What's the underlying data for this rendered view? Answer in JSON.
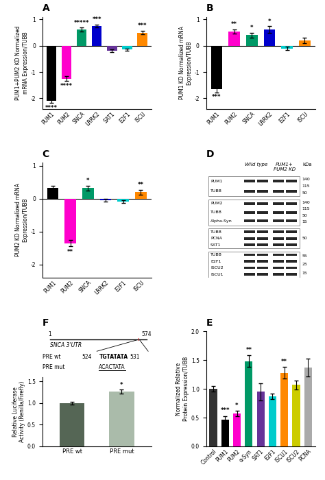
{
  "chart_data": [
    {
      "type": "bar",
      "title": "A",
      "ylabel": "PUM1+PUM2 KD Normalized\nmRNA Expression/TUBB",
      "categories": [
        "PUM1",
        "PUM2",
        "SNCA",
        "LRRK2",
        "SAT1",
        "E2F1",
        "ISCU"
      ],
      "values": [
        -2.1,
        -1.25,
        0.62,
        0.75,
        -0.2,
        -0.15,
        0.5
      ],
      "errors": [
        0.08,
        0.1,
        0.07,
        0.06,
        0.05,
        0.05,
        0.07
      ],
      "colors": [
        "#000000",
        "#ff00cc",
        "#009966",
        "#0000cc",
        "#663399",
        "#00cccc",
        "#ff8800"
      ],
      "annotations": [
        "****",
        "****",
        "*****",
        "***",
        null,
        null,
        "***"
      ],
      "ylim": [
        -2.4,
        1.1
      ],
      "yticks": [
        -2,
        -1,
        0,
        1
      ]
    },
    {
      "type": "bar",
      "title": "B",
      "ylabel": "PUM1 KD Normalized mRNA\nExpression/TUBB",
      "categories": [
        "PUM1",
        "PUM2",
        "SNCA",
        "LRRK2",
        "E2F1",
        "ISCU"
      ],
      "values": [
        -1.65,
        0.55,
        0.4,
        0.62,
        -0.1,
        0.2
      ],
      "errors": [
        0.12,
        0.08,
        0.1,
        0.12,
        0.06,
        0.1
      ],
      "colors": [
        "#000000",
        "#ff00cc",
        "#009966",
        "#0000cc",
        "#00cccc",
        "#ff8800"
      ],
      "annotations": [
        "***",
        "**",
        "*",
        "*",
        null,
        null
      ],
      "ylim": [
        -2.4,
        1.1
      ],
      "yticks": [
        -2,
        -1,
        0,
        1
      ]
    },
    {
      "type": "bar",
      "title": "C",
      "ylabel": "PUM2 KD Normalized mRNA\nExpression/TUBB",
      "categories": [
        "PUM1",
        "PUM2",
        "SNCA",
        "LRRK2",
        "E2F1",
        "ISCU"
      ],
      "values": [
        0.32,
        -1.35,
        0.32,
        -0.05,
        -0.08,
        0.2
      ],
      "errors": [
        0.07,
        0.1,
        0.07,
        0.04,
        0.04,
        0.07
      ],
      "colors": [
        "#000000",
        "#ff00cc",
        "#009966",
        "#0000cc",
        "#00cccc",
        "#ff8800"
      ],
      "annotations": [
        null,
        "**",
        "*",
        null,
        null,
        "**"
      ],
      "ylim": [
        -2.4,
        1.1
      ],
      "yticks": [
        -2,
        -1,
        0,
        1
      ]
    },
    {
      "type": "blot",
      "title": "D",
      "annotations": [
        "Wild type",
        "PUM1+\nPUM2 KD",
        "kDa"
      ],
      "groups": [
        {
          "labels": [
            "PUM1",
            "TUBB"
          ],
          "markers": [
            140,
            115,
            50
          ]
        },
        {
          "labels": [
            "PUM2",
            "TUBB",
            "Alpha-Syn"
          ],
          "markers": [
            140,
            115,
            50,
            15
          ]
        },
        {
          "labels": [
            "TUBB",
            "PCNA",
            "SAT1"
          ],
          "markers": [
            50
          ]
        },
        {
          "labels": [
            "TUBB",
            "E2F1",
            "ISCU2",
            "ISCU1"
          ],
          "markers": [
            55,
            25,
            15
          ]
        }
      ]
    },
    {
      "type": "bar",
      "title": "E",
      "ylabel": "Normalized Relative\nProtein Expression/TUBB",
      "categories": [
        "Control",
        "PUM1",
        "PUM2",
        "α-Syn",
        "SAT1",
        "E2F1",
        "ISCU1",
        "ISCU2",
        "PCNA"
      ],
      "values": [
        1.0,
        0.46,
        0.57,
        1.48,
        0.95,
        0.87,
        1.28,
        1.07,
        1.37
      ],
      "errors": [
        0.05,
        0.07,
        0.05,
        0.1,
        0.15,
        0.05,
        0.1,
        0.08,
        0.15
      ],
      "colors": [
        "#333333",
        "#000000",
        "#ff00cc",
        "#009966",
        "#663399",
        "#00cccc",
        "#ff8800",
        "#cccc00",
        "#aaaaaa"
      ],
      "annotations": [
        null,
        "***",
        "*",
        "**",
        null,
        null,
        "**",
        null,
        null
      ],
      "ylim": [
        0,
        2.0
      ],
      "yticks": [
        {
          "value": 0,
          "label": "0.0"
        },
        0.5,
        {
          "value": 1,
          "label": "1.0"
        },
        1.5,
        {
          "value": 2,
          "label": "2.0"
        }
      ]
    },
    {
      "type": "bar",
      "title": "F",
      "ylabel": "Relative Luciferase\nActivity (Renilla/Firefly)",
      "categories": [
        "PRE wt",
        "PRE mut"
      ],
      "values": [
        1.0,
        1.27
      ],
      "errors": [
        0.03,
        0.05
      ],
      "colors": [
        "#556655",
        "#aabbaa"
      ],
      "annotations": [
        null,
        "*"
      ],
      "ylim": [
        0.0,
        1.6
      ],
      "yticks": [
        {
          "value": 0,
          "label": "0.0"
        },
        0.5,
        {
          "value": 1,
          "label": "1.0"
        },
        1.5
      ],
      "diagram": {
        "utr_label": "SNCA 3'UTR",
        "utr_range": [
          1,
          574
        ],
        "site_range": [
          524,
          531
        ],
        "sequences": [
          {
            "name": "PRE wt",
            "sequence": "TGTATATA"
          },
          {
            "name": "PRE mut",
            "sequence": "ACACTATA"
          }
        ]
      }
    }
  ]
}
